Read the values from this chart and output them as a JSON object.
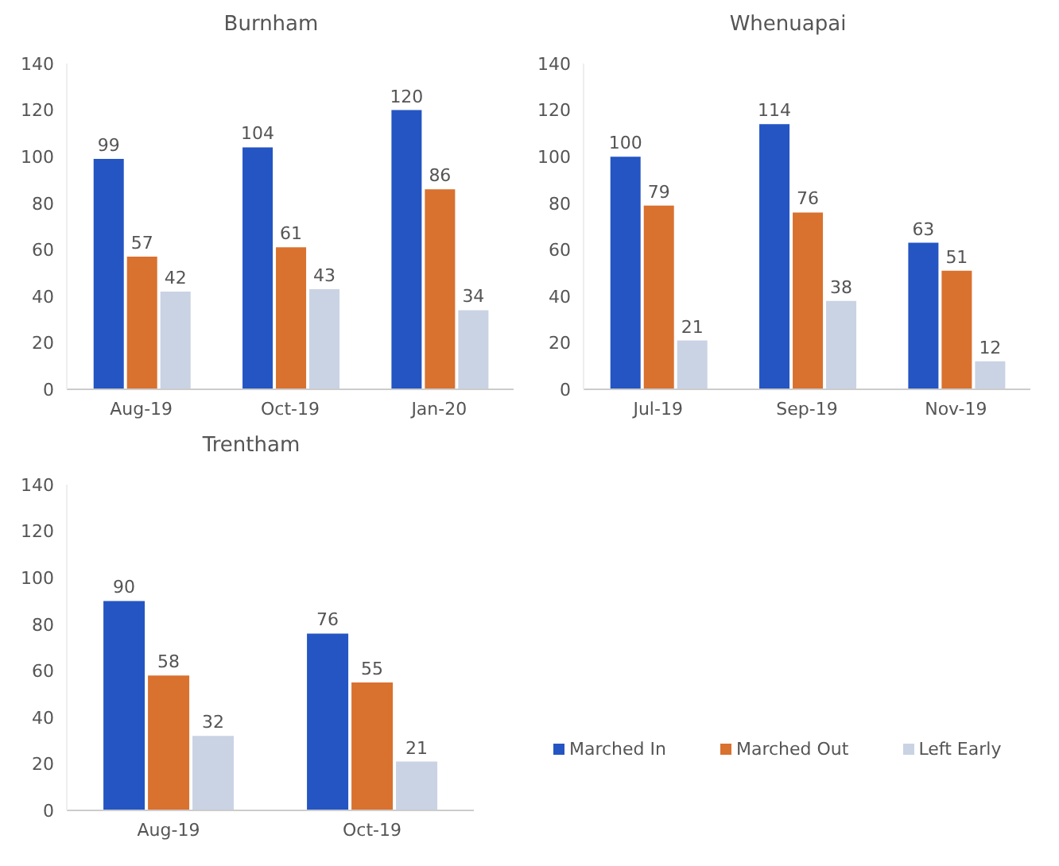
{
  "chart_data": [
    {
      "type": "bar",
      "title": "Burnham",
      "categories": [
        "Aug-19",
        "Oct-19",
        "Jan-20"
      ],
      "series": [
        {
          "color": "#2455c3",
          "values": [
            99,
            104,
            120
          ]
        },
        {
          "color": "#d9712f",
          "values": [
            57,
            61,
            86
          ]
        },
        {
          "color": "#c9d3e4",
          "values": [
            42,
            43,
            34
          ]
        }
      ],
      "ylim": [
        0,
        140
      ],
      "yticks": [
        0,
        20,
        40,
        60,
        80,
        100,
        120,
        140
      ],
      "grid": false,
      "data_labels": true,
      "legend": false
    },
    {
      "type": "bar",
      "title": "Whenuapai",
      "categories": [
        "Jul-19",
        "Sep-19",
        "Nov-19"
      ],
      "series": [
        {
          "color": "#2455c3",
          "values": [
            100,
            114,
            63
          ]
        },
        {
          "color": "#d9712f",
          "values": [
            79,
            76,
            51
          ]
        },
        {
          "color": "#c9d3e4",
          "values": [
            21,
            38,
            12
          ]
        }
      ],
      "ylim": [
        0,
        140
      ],
      "yticks": [
        0,
        20,
        40,
        60,
        80,
        100,
        120,
        140
      ],
      "grid": false,
      "data_labels": true,
      "legend": false
    },
    {
      "type": "bar",
      "title": "Trentham",
      "categories": [
        "Aug-19",
        "Oct-19"
      ],
      "series": [
        {
          "name": "Marched In",
          "color": "#2455c3",
          "values": [
            90,
            76
          ]
        },
        {
          "name": "Marched Out",
          "color": "#d9712f",
          "values": [
            58,
            55
          ]
        },
        {
          "name": "Left Early",
          "color": "#c9d3e4",
          "values": [
            32,
            21
          ]
        }
      ],
      "ylim": [
        0,
        140
      ],
      "yticks": [
        0,
        20,
        40,
        60,
        80,
        100,
        120,
        140
      ],
      "grid": false,
      "data_labels": true,
      "legend": "right"
    }
  ]
}
